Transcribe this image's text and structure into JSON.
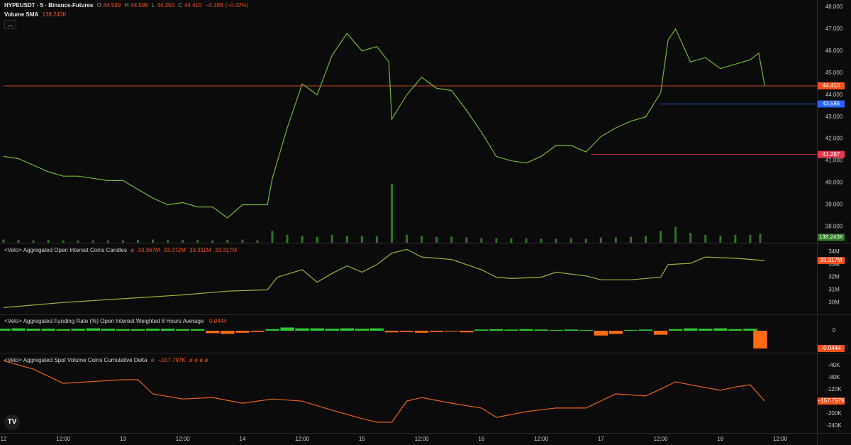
{
  "chart_data": [
    {
      "type": "line",
      "title": "HYPEUSDT · 5 · Binance-Futures",
      "ohlc": [
        {
          "name": "O",
          "value": 44.599,
          "label": "44.599"
        },
        {
          "name": "H",
          "value": 44.599,
          "label": "44.599"
        },
        {
          "name": "L",
          "value": 44.35,
          "label": "44.350"
        },
        {
          "name": "C",
          "value": 44.41,
          "label": "44.410"
        }
      ],
      "change": {
        "value": -0.189,
        "label": "−0.189"
      },
      "change_pct": {
        "value": -0.42,
        "label": "(−0.42%)"
      },
      "x": [
        0,
        3,
        6,
        9,
        12,
        15,
        18,
        21,
        24,
        27,
        30,
        33,
        36,
        39,
        42,
        45,
        48,
        51,
        53,
        54,
        57,
        60,
        63,
        66,
        69,
        72,
        75,
        77.4,
        78,
        81,
        84,
        87,
        90,
        93,
        96,
        99,
        102,
        105,
        108,
        111,
        114,
        117,
        120,
        123,
        126,
        129,
        132,
        133.5,
        135,
        138,
        141,
        144,
        147,
        150,
        151.7,
        152.9
      ],
      "values": [
        41.2,
        41.1,
        40.8,
        40.5,
        40.3,
        40.3,
        40.2,
        40.1,
        40.1,
        39.7,
        39.3,
        39.0,
        39.1,
        38.9,
        38.9,
        38.4,
        39.0,
        39.0,
        39.0,
        40.2,
        42.5,
        44.5,
        44.0,
        45.8,
        46.8,
        46.0,
        46.2,
        45.5,
        42.9,
        44.0,
        44.8,
        44.3,
        44.2,
        43.3,
        42.3,
        41.2,
        41.0,
        40.9,
        41.2,
        41.7,
        41.7,
        41.4,
        42.1,
        42.5,
        42.8,
        43.0,
        44.1,
        46.5,
        47.0,
        45.5,
        45.7,
        45.2,
        45.4,
        45.6,
        45.9,
        44.41
      ],
      "color": "#6fb83a",
      "ylim": [
        37.27,
        48.32
      ],
      "yticks": [
        {
          "value": 38,
          "label": "38.000"
        },
        {
          "value": 39,
          "label": "39.000"
        },
        {
          "value": 40,
          "label": "40.000"
        },
        {
          "value": 41,
          "label": "41.000"
        },
        {
          "value": 42,
          "label": "42.000"
        },
        {
          "value": 43,
          "label": "43.000"
        },
        {
          "value": 44,
          "label": "44.000"
        },
        {
          "value": 45,
          "label": "45.000"
        },
        {
          "value": 46,
          "label": "46.000"
        },
        {
          "value": 47,
          "label": "47.000"
        },
        {
          "value": 48,
          "label": "48.000"
        }
      ],
      "price_lines": [
        {
          "value": 44.41,
          "label": "44.410",
          "color": "#f4511e",
          "from": 0
        },
        {
          "value": 43.586,
          "label": "43.586",
          "color": "#2962ff",
          "from": 131.8
        },
        {
          "value": 41.287,
          "label": "41.287",
          "color": "#e53950",
          "from": 118
        }
      ],
      "volume": {
        "name": "Volume SMA",
        "sma": {
          "value": 138.243,
          "label": "138.243K"
        },
        "color": "#3a8f2c",
        "ylim": [
          0,
          1800
        ],
        "x": [
          0,
          3,
          6,
          9,
          12,
          15,
          18,
          21,
          24,
          27,
          30,
          33,
          36,
          39,
          42,
          45,
          48,
          51,
          54,
          57,
          60,
          63,
          66,
          69,
          72,
          75,
          78,
          81,
          84,
          87,
          90,
          93,
          96,
          99,
          102,
          105,
          108,
          111,
          114,
          117,
          120,
          123,
          126,
          129,
          132,
          135,
          138,
          141,
          144,
          147,
          150,
          152
        ],
        "values": [
          80,
          70,
          60,
          70,
          60,
          60,
          60,
          60,
          60,
          70,
          80,
          70,
          70,
          70,
          60,
          70,
          80,
          60,
          300,
          200,
          180,
          150,
          200,
          180,
          170,
          160,
          1500,
          200,
          180,
          150,
          150,
          140,
          120,
          120,
          120,
          110,
          100,
          100,
          120,
          100,
          130,
          140,
          150,
          180,
          300,
          400,
          250,
          200,
          180,
          200,
          200,
          220
        ]
      }
    },
    {
      "type": "line",
      "title": "<Velo> Aggregated Open Interest Coins Candles",
      "symbol": "ø",
      "legend_values": [
        {
          "value": 33.367,
          "label": "33.367M"
        },
        {
          "value": 33.372,
          "label": "33.372M"
        },
        {
          "value": 33.311,
          "label": "33.311M"
        },
        {
          "value": 33.317,
          "label": "33.317M"
        }
      ],
      "last": {
        "value": 33.317,
        "label": "33.317M"
      },
      "last_color": "#f4511e",
      "x": [
        0,
        12,
        24,
        36,
        45,
        53,
        55,
        60,
        63,
        66,
        69,
        72,
        75,
        78,
        81,
        84,
        90,
        96,
        99,
        102,
        108,
        111,
        117,
        120,
        126,
        132,
        133.5,
        138,
        141,
        147,
        152.9
      ],
      "values": [
        29.6,
        30.0,
        30.3,
        30.6,
        30.9,
        31.0,
        32.0,
        32.6,
        31.6,
        32.3,
        32.9,
        32.4,
        33.0,
        33.9,
        34.2,
        33.6,
        33.4,
        32.6,
        32.0,
        31.9,
        32.0,
        32.4,
        32.1,
        31.8,
        31.8,
        32.0,
        33.0,
        33.1,
        33.6,
        33.5,
        33.317
      ],
      "color": "#9ab83a",
      "ylim": [
        29.06,
        34.67
      ],
      "yticks": [
        {
          "value": 30,
          "label": "30M"
        },
        {
          "value": 31,
          "label": "31M"
        },
        {
          "value": 32,
          "label": "32M"
        },
        {
          "value": 33,
          "label": "33M"
        },
        {
          "value": 34,
          "label": "34M"
        }
      ]
    },
    {
      "type": "bar",
      "title": "<Velo> Aggregated Funding Rate (%) Open Interest Weighted 8 Hours Average",
      "last": {
        "value": -0.0444,
        "label": "-0.0444"
      },
      "last_color": "#f4511e",
      "x": [
        0,
        3,
        6,
        9,
        12,
        15,
        18,
        21,
        24,
        27,
        30,
        33,
        36,
        39,
        42,
        45,
        48,
        51,
        54,
        57,
        60,
        63,
        66,
        69,
        72,
        75,
        78,
        81,
        84,
        87,
        90,
        93,
        96,
        99,
        102,
        105,
        108,
        111,
        114,
        117,
        120,
        123,
        126,
        129,
        132,
        135,
        138,
        141,
        144,
        147,
        150,
        152
      ],
      "values": [
        0.005,
        0.006,
        0.005,
        0.005,
        0.004,
        0.005,
        0.006,
        0.005,
        0.004,
        0.004,
        0.005,
        0.005,
        0.004,
        0.004,
        -0.006,
        -0.008,
        -0.005,
        -0.003,
        0.004,
        0.008,
        0.006,
        0.006,
        0.005,
        0.006,
        0.005,
        0.006,
        -0.004,
        -0.003,
        -0.005,
        -0.003,
        -0.002,
        -0.004,
        0.003,
        0.004,
        0.003,
        0.004,
        0.003,
        0.002,
        0.003,
        0.002,
        -0.012,
        -0.008,
        0.002,
        0.003,
        -0.01,
        0.004,
        0.006,
        0.005,
        0.006,
        0.004,
        0.005,
        -0.0444
      ],
      "colors": {
        "up": "#2fc52f",
        "down": "#ff6a14"
      },
      "ylim": [
        -0.055,
        0.039
      ],
      "yticks": [
        0
      ]
    },
    {
      "type": "line",
      "title": "<Velo> Aggregated Spot Volume Coins Cumulative Delta",
      "symbol": "ø",
      "last": {
        "value": -157.797,
        "label": "−157.797K"
      },
      "trailing": "ø ø ø ø",
      "last_color": "#f4511e",
      "x": [
        0,
        6,
        12,
        24,
        27,
        30,
        36,
        42,
        48,
        54,
        60,
        66,
        72,
        75,
        78,
        81,
        84,
        90,
        96,
        99,
        105,
        111,
        117,
        123,
        129,
        132,
        135,
        138,
        144,
        147,
        150,
        152.9
      ],
      "values": [
        -24,
        -52,
        -99,
        -87,
        -87,
        -134,
        -151,
        -146,
        -165,
        -151,
        -158,
        -188,
        -216,
        -228,
        -228,
        -158,
        -146,
        -165,
        -181,
        -212,
        -193,
        -181,
        -181,
        -134,
        -141,
        -118,
        -94,
        -104,
        -122,
        -111,
        -104,
        -157.797
      ],
      "color": "#e8631c",
      "ylim": [
        -263.5,
        0
      ],
      "yticks": [
        {
          "value": -40,
          "label": "-40K"
        },
        {
          "value": -80,
          "label": "-80K"
        },
        {
          "value": -120,
          "label": "-120K"
        },
        {
          "value": -200,
          "label": "-200K"
        },
        {
          "value": -240,
          "label": "-240K"
        }
      ],
      "xlim": [
        -0.7,
        163.4
      ],
      "xticks": [
        {
          "value": 0,
          "label": "12"
        },
        {
          "value": 12,
          "label": "12:00"
        },
        {
          "value": 24,
          "label": "13"
        },
        {
          "value": 36,
          "label": "12:00"
        },
        {
          "value": 48,
          "label": "14"
        },
        {
          "value": 60,
          "label": "12:00"
        },
        {
          "value": 72,
          "label": "15"
        },
        {
          "value": 84,
          "label": "12:00"
        },
        {
          "value": 96,
          "label": "16"
        },
        {
          "value": 108,
          "label": "12:00"
        },
        {
          "value": 120,
          "label": "17"
        },
        {
          "value": 132,
          "label": "12:00"
        },
        {
          "value": 144,
          "label": "18"
        },
        {
          "value": 156,
          "label": "12:00"
        }
      ]
    }
  ]
}
